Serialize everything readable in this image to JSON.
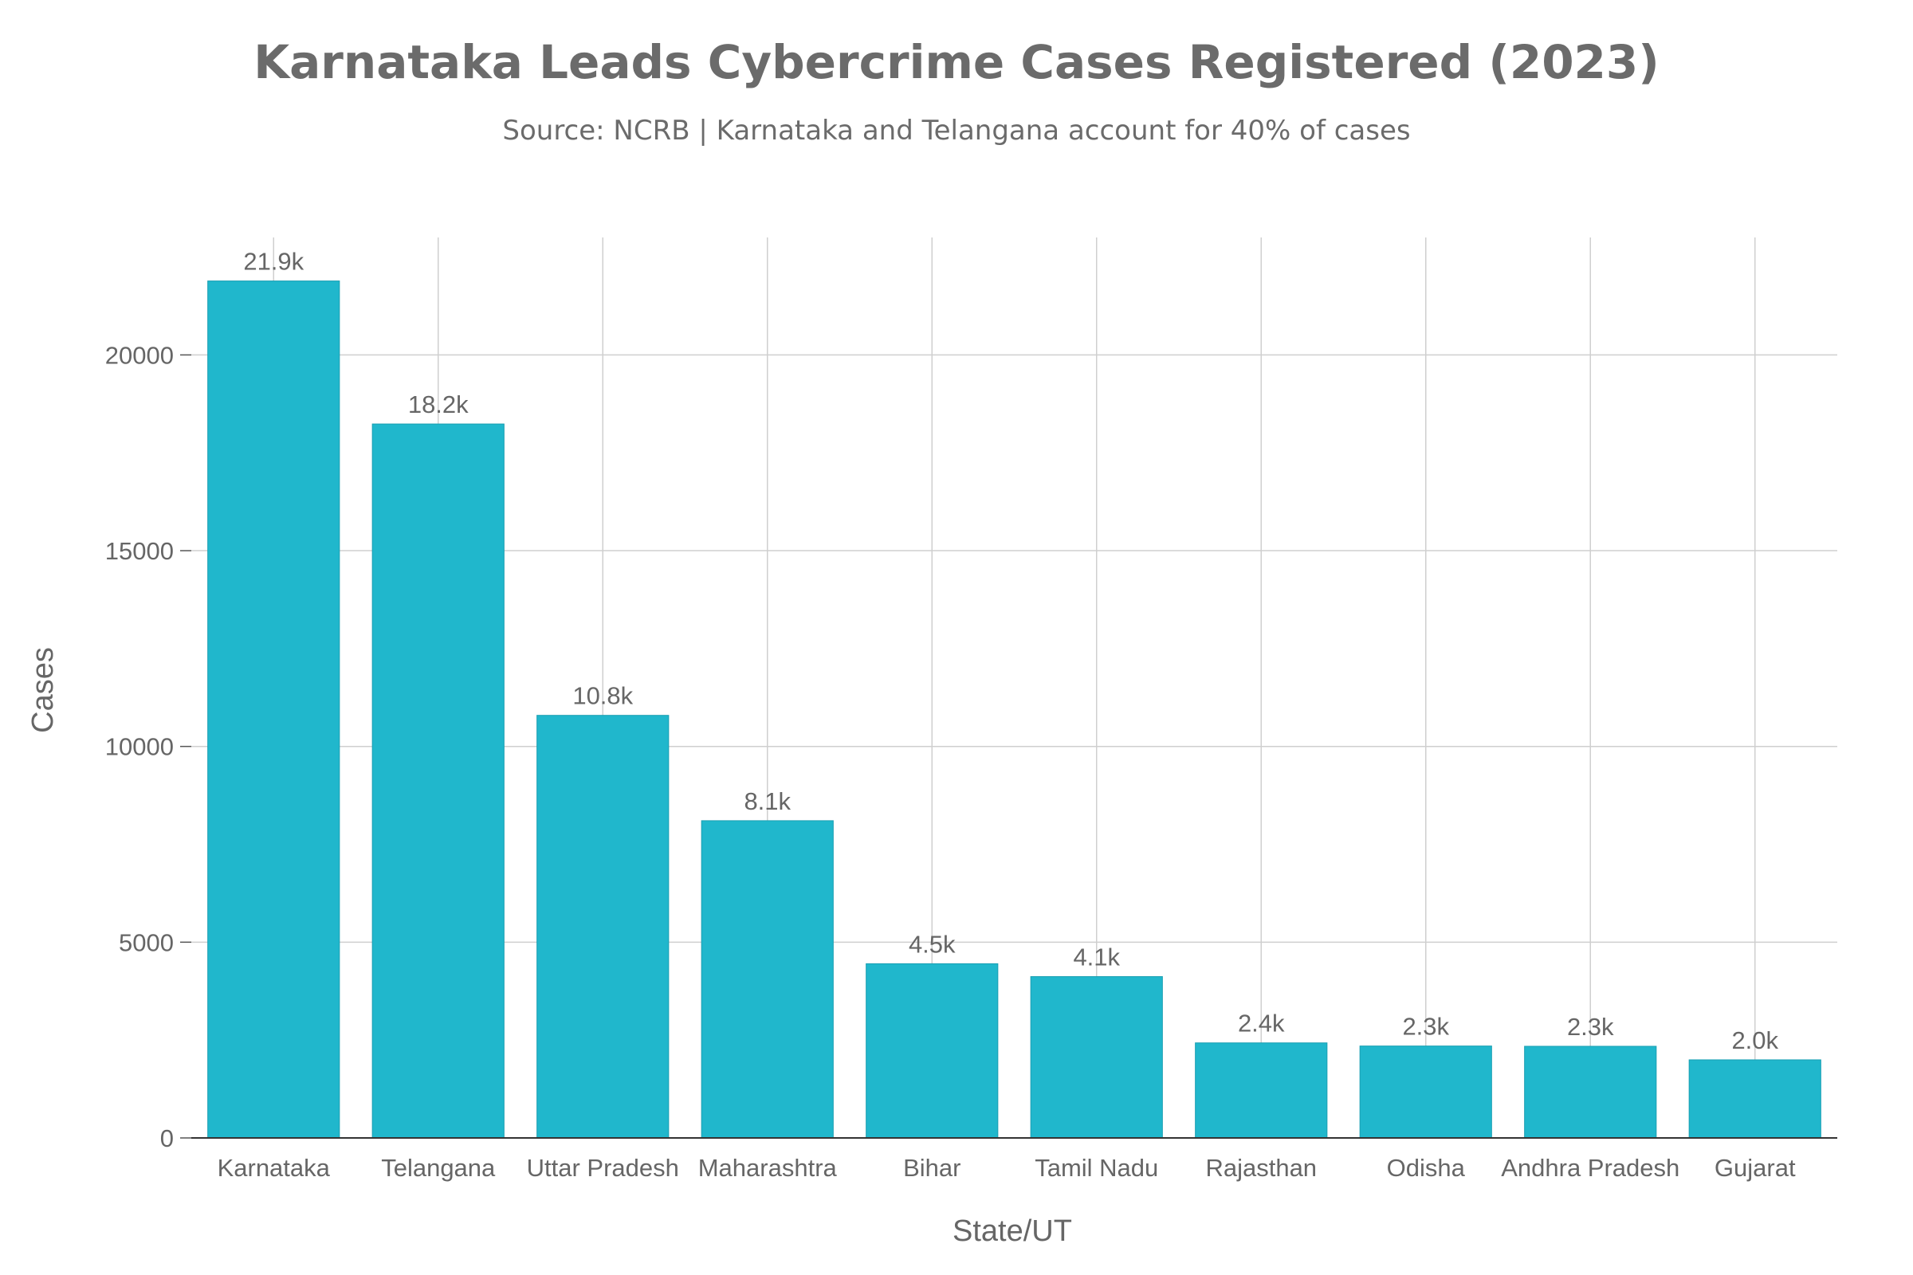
{
  "chart_data": {
    "type": "bar",
    "title": "Karnataka Leads Cybercrime Cases Registered (2023)",
    "subtitle": "Source: NCRB | Karnataka and Telangana account for 40% of cases",
    "xlabel": "State/UT",
    "ylabel": "Cases",
    "categories": [
      "Karnataka",
      "Telangana",
      "Uttar Pradesh",
      "Maharashtra",
      "Bihar",
      "Tamil Nadu",
      "Rajasthan",
      "Odisha",
      "Andhra Pradesh",
      "Gujarat"
    ],
    "values": [
      21889,
      18236,
      10794,
      8103,
      4450,
      4121,
      2428,
      2348,
      2341,
      1995
    ],
    "data_labels": [
      "21.9k",
      "18.2k",
      "10.8k",
      "8.1k",
      "4.5k",
      "4.1k",
      "2.4k",
      "2.3k",
      "2.3k",
      "2.0k"
    ],
    "ylim": [
      0,
      23000
    ],
    "yticks": [
      0,
      5000,
      10000,
      15000,
      20000
    ],
    "ytick_labels": [
      "0",
      "5000",
      "10000",
      "15000",
      "20000"
    ],
    "grid": true,
    "bar_color": "#20b7cc"
  }
}
